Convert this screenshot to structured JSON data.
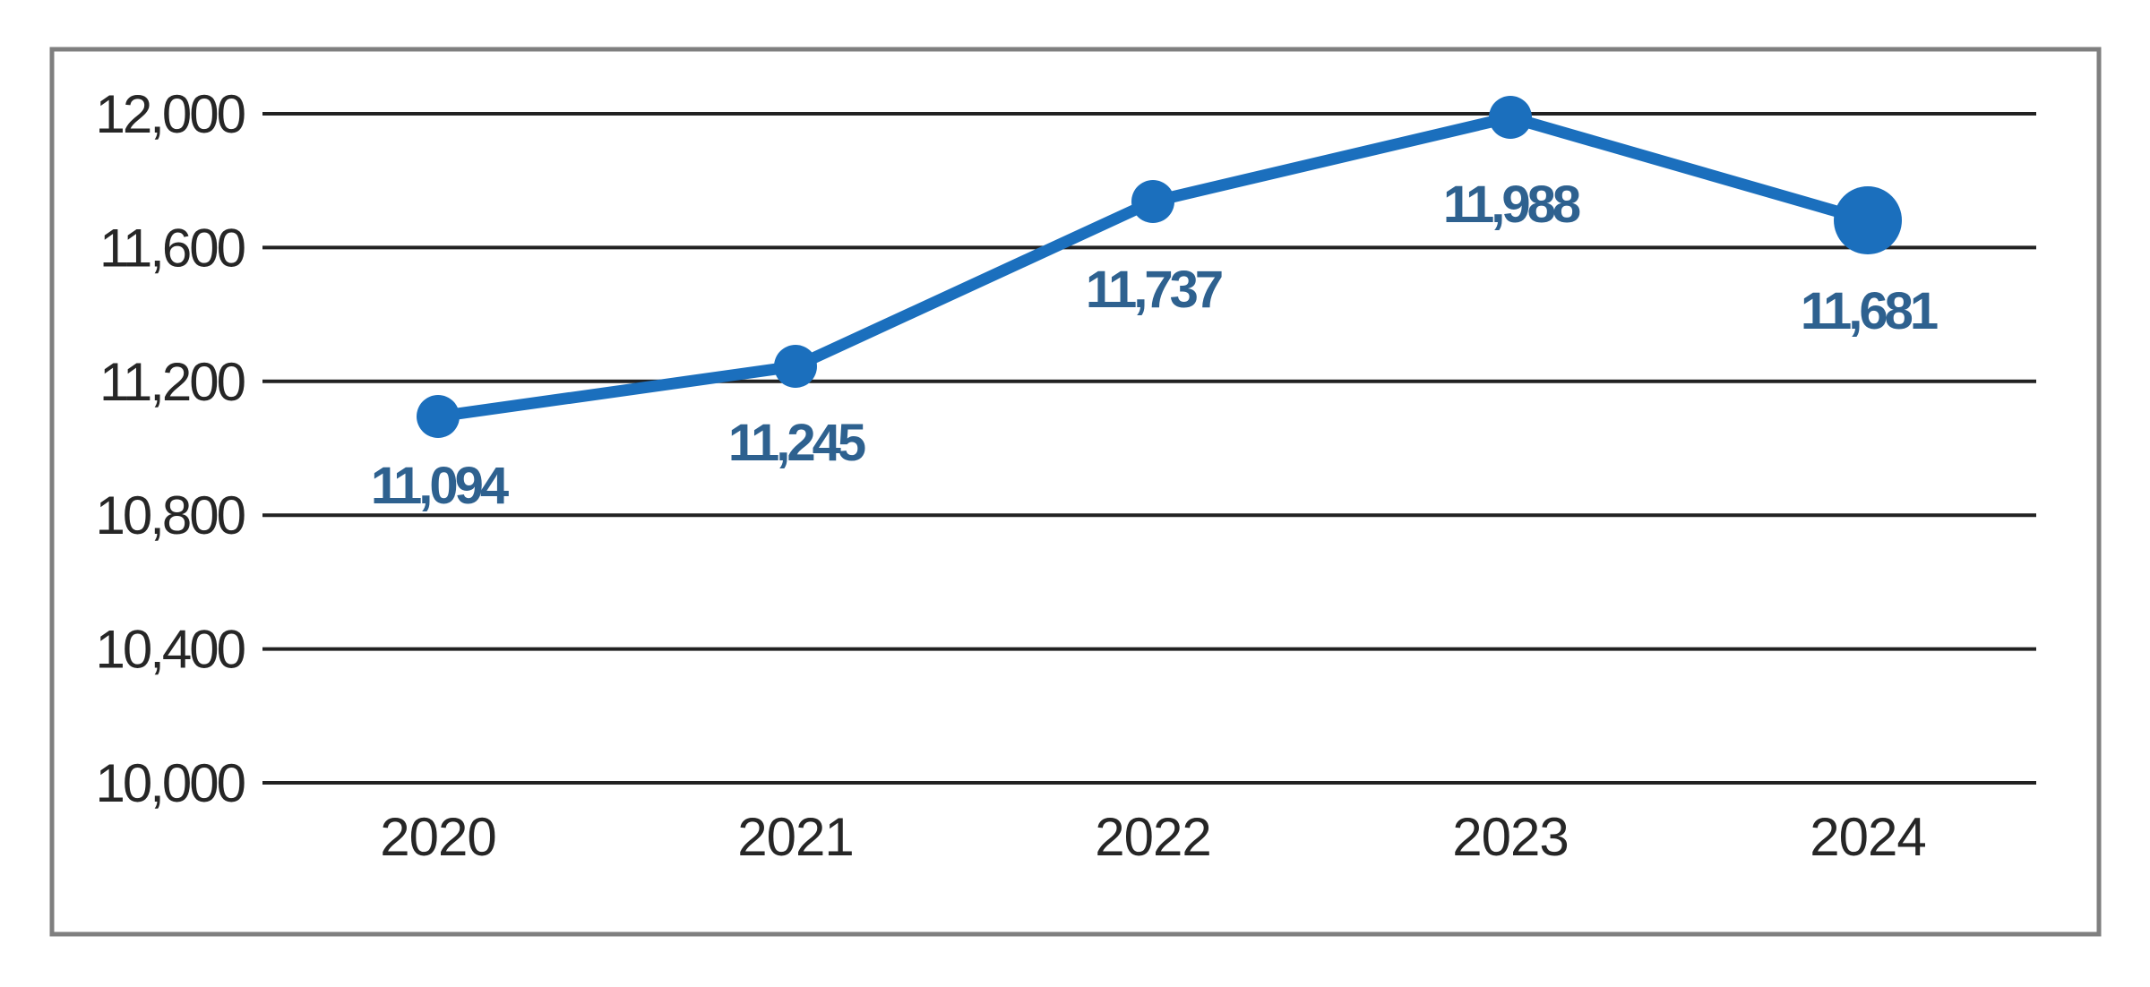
{
  "page": {
    "background_color": "#ffffff"
  },
  "chart_data": {
    "type": "line",
    "title": "",
    "xlabel": "",
    "ylabel": "",
    "categories": [
      "2020",
      "2021",
      "2022",
      "2023",
      "2024"
    ],
    "series": [
      {
        "name": "annual-values",
        "values": [
          11094,
          11245,
          11737,
          11988,
          11681
        ]
      }
    ],
    "data_labels": [
      "11,094",
      "11,245",
      "11,737",
      "11,988",
      "11,681"
    ],
    "y_ticks": [
      {
        "value": 12000,
        "label": "12,000"
      },
      {
        "value": 11600,
        "label": "11,600"
      },
      {
        "value": 11200,
        "label": "11,200"
      },
      {
        "value": 10800,
        "label": "10,800"
      },
      {
        "value": 10400,
        "label": "10,400"
      },
      {
        "value": 10000,
        "label": "10,000"
      }
    ],
    "ylim": [
      10000,
      12000
    ],
    "grid": true,
    "legend_position": "none",
    "emphasize_last_point": true,
    "colors": {
      "line": "#1B6FBD",
      "marker": "#1B6FBD",
      "data_label": "#2E618F",
      "gridline": "#222222",
      "tick_text": "#262626",
      "plot_border": "#7F7F7F",
      "background": "#ffffff"
    }
  }
}
